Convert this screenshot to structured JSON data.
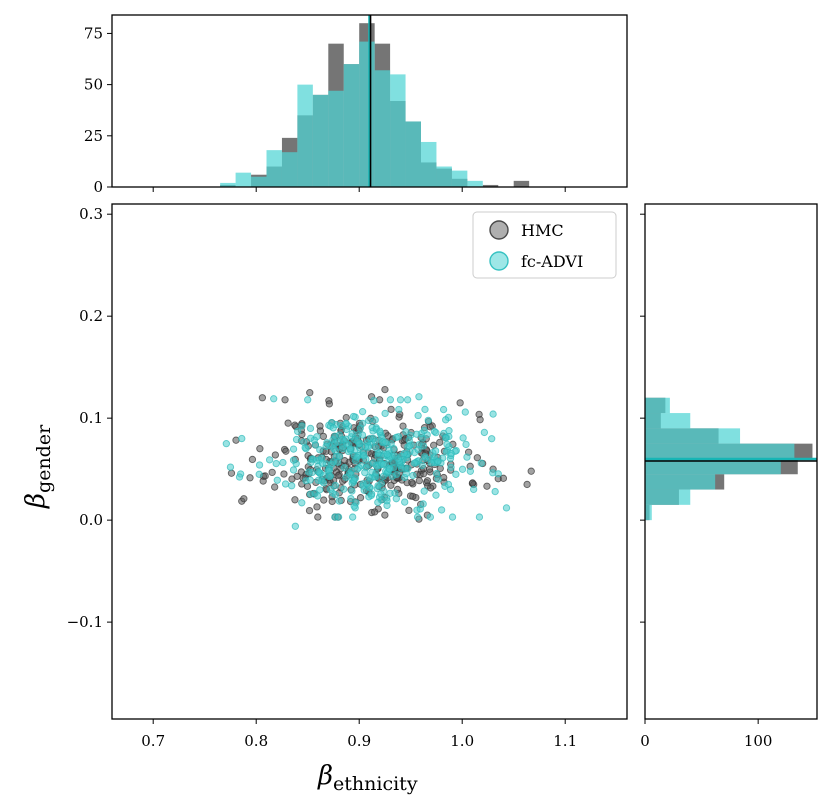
{
  "colors": {
    "hmc": "#6e6e6e",
    "fcadvi": "#4fd4d4",
    "overlap": "#2e9696",
    "hmc_point": "#555555",
    "fcadvi_point": "#45cccc",
    "mean_line_hmc": "#000000",
    "mean_line_fcadvi": "#17b5b5"
  },
  "chart_data": [
    {
      "id": "scatter",
      "type": "scatter",
      "xlabel_symbol": "β",
      "xlabel_sub": "ethnicity",
      "ylabel_symbol": "β",
      "ylabel_sub": "gender",
      "xlim": [
        0.66,
        1.16
      ],
      "ylim": [
        -0.195,
        0.31
      ],
      "xticks": [
        0.7,
        0.8,
        0.9,
        1.0,
        1.1
      ],
      "xtick_labels": [
        "0.7",
        "0.8",
        "0.9",
        "1.0",
        "1.1"
      ],
      "yticks": [
        -0.1,
        0.0,
        0.1,
        0.2,
        0.3
      ],
      "ytick_labels": [
        "−0.1",
        "0.0",
        "0.1",
        "0.2",
        "0.3"
      ],
      "legend": {
        "position": "top-right",
        "entries": [
          "HMC",
          "fc-ADVI"
        ]
      },
      "series": [
        {
          "name": "HMC",
          "center": [
            0.91,
            0.058
          ],
          "sd": [
            0.046,
            0.023
          ],
          "count": 340,
          "seed": 11,
          "points": [
            [
              0.806,
              0.12
            ],
            [
              0.852,
              0.125
            ],
            [
              0.912,
              0.121
            ],
            [
              0.925,
              0.128
            ],
            [
              1.067,
              0.048
            ],
            [
              1.063,
              0.035
            ],
            [
              0.776,
              0.046
            ],
            [
              0.788,
              0.021
            ],
            [
              0.859,
              0.013
            ],
            [
              0.915,
              0.008
            ],
            [
              0.958,
              0.001
            ],
            [
              1.04,
              0.041
            ],
            [
              1.03,
              0.05
            ],
            [
              0.871,
              0.114
            ],
            [
              0.998,
              0.115
            ]
          ]
        },
        {
          "name": "fc-ADVI",
          "center": [
            0.908,
            0.06
          ],
          "sd": [
            0.046,
            0.023
          ],
          "count": 340,
          "seed": 29,
          "points": [
            [
              0.838,
              -0.006
            ],
            [
              0.771,
              0.075
            ],
            [
              0.775,
              0.052
            ],
            [
              0.786,
              0.08
            ],
            [
              1.043,
              0.012
            ],
            [
              1.03,
              0.104
            ],
            [
              1.003,
              0.106
            ],
            [
              0.958,
              0.121
            ],
            [
              0.85,
              0.118
            ],
            [
              0.817,
              0.119
            ],
            [
              0.88,
              0.003
            ],
            [
              0.927,
              0.019
            ],
            [
              0.98,
              0.01
            ],
            [
              1.032,
              0.028
            ]
          ]
        }
      ]
    },
    {
      "id": "top-histogram",
      "type": "bar",
      "orientation": "vertical",
      "yticks": [
        0,
        25,
        50,
        75
      ],
      "ytick_labels": [
        "0",
        "25",
        "50",
        "75"
      ],
      "ylim": [
        0,
        84
      ],
      "bin_width": 0.015,
      "bin_edges_start": 0.75,
      "series": [
        {
          "name": "HMC",
          "values": [
            0,
            1,
            0,
            6,
            10,
            24,
            35,
            45,
            70,
            60,
            80,
            70,
            42,
            32,
            12,
            9,
            4,
            0,
            1,
            0,
            3,
            0
          ]
        },
        {
          "name": "fc-ADVI",
          "values": [
            0,
            2,
            7,
            5,
            18,
            17,
            50,
            45,
            47,
            60,
            71,
            57,
            55,
            32,
            22,
            10,
            8,
            3,
            0,
            0,
            0,
            0
          ]
        }
      ],
      "mean_lines": [
        0.911,
        0.91
      ]
    },
    {
      "id": "right-histogram",
      "type": "bar",
      "orientation": "horizontal",
      "xticks": [
        0,
        100
      ],
      "xtick_labels": [
        "0",
        "100"
      ],
      "xlim": [
        0,
        152
      ],
      "bin_width": 0.015,
      "bin_edges_start": -0.015,
      "series": [
        {
          "name": "HMC",
          "values": [
            0,
            4,
            30,
            70,
            135,
            148,
            65,
            14,
            18,
            0
          ]
        },
        {
          "name": "fc-ADVI",
          "values": [
            0,
            6,
            40,
            62,
            120,
            132,
            84,
            40,
            22,
            0
          ]
        }
      ],
      "mean_lines": [
        0.058,
        0.06
      ]
    }
  ]
}
